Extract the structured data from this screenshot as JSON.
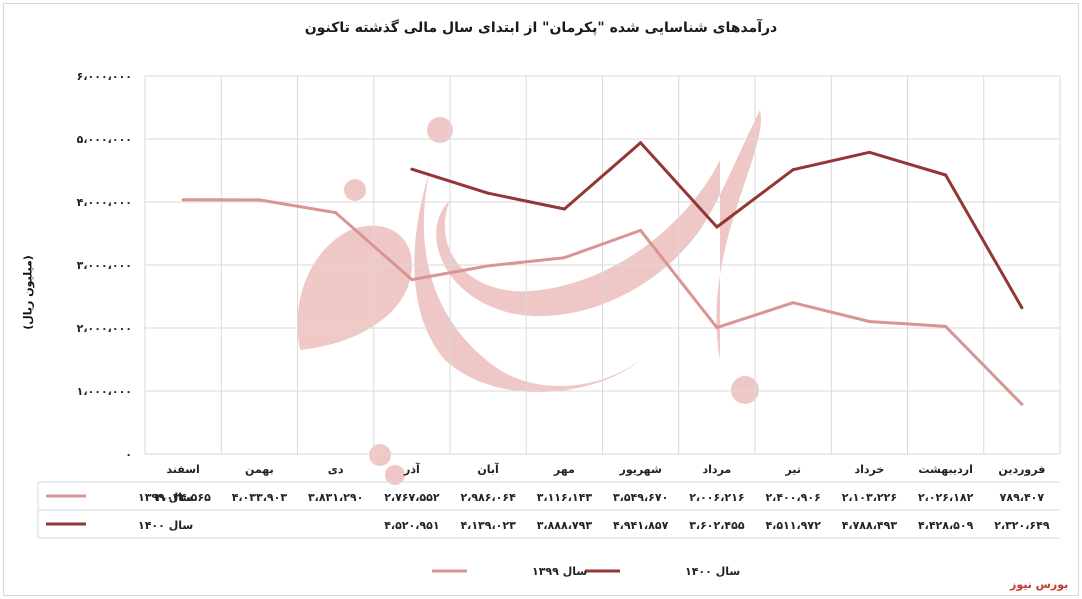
{
  "brand": "بورس نیوز",
  "chart_data": {
    "type": "line",
    "title": "درآمدهای شناسایی شده \"پکرمان\" از ابتدای سال مالی گذشته تاکنون",
    "ylabel": "(میلیون ریال)",
    "ylim": [
      0,
      6000000
    ],
    "y_ticks": [
      "۰",
      "۱،۰۰۰،۰۰۰",
      "۲،۰۰۰،۰۰۰",
      "۳،۰۰۰،۰۰۰",
      "۴،۰۰۰،۰۰۰",
      "۵،۰۰۰،۰۰۰",
      "۶،۰۰۰،۰۰۰"
    ],
    "categories": [
      "فروردین",
      "اردیبهشت",
      "خرداد",
      "تیر",
      "مرداد",
      "شهریور",
      "مهر",
      "آبان",
      "آذر",
      "دی",
      "بهمن",
      "اسفند"
    ],
    "grid": true,
    "legend": "bottom",
    "series": [
      {
        "name": "سال ۱۳۹۹",
        "color": "#d99594",
        "values": [
          789407,
          2026182,
          2103226,
          2400906,
          2006216,
          3549670,
          3116143,
          2986064,
          2767552,
          3831290,
          4033903,
          4034565
        ],
        "labels": [
          "۷۸۹،۴۰۷",
          "۲،۰۲۶،۱۸۲",
          "۲،۱۰۳،۲۲۶",
          "۲،۴۰۰،۹۰۶",
          "۲،۰۰۶،۲۱۶",
          "۳،۵۴۹،۶۷۰",
          "۳،۱۱۶،۱۴۳",
          "۲،۹۸۶،۰۶۴",
          "۲،۷۶۷،۵۵۲",
          "۳،۸۳۱،۲۹۰",
          "۴،۰۳۳،۹۰۳",
          "۴،۰۳۴،۵۶۵"
        ]
      },
      {
        "name": "سال ۱۴۰۰",
        "color": "#943634",
        "values": [
          2320649,
          4428509,
          4788493,
          4511972,
          3602455,
          4941857,
          3888793,
          4139023,
          4520951,
          null,
          null,
          null
        ],
        "labels": [
          "۲،۳۲۰،۶۴۹",
          "۴،۴۲۸،۵۰۹",
          "۴،۷۸۸،۴۹۳",
          "۴،۵۱۱،۹۷۲",
          "۳،۶۰۲،۴۵۵",
          "۴،۹۴۱،۸۵۷",
          "۳،۸۸۸،۷۹۳",
          "۴،۱۳۹،۰۲۳",
          "۴،۵۲۰،۹۵۱",
          "",
          "",
          ""
        ]
      }
    ]
  }
}
